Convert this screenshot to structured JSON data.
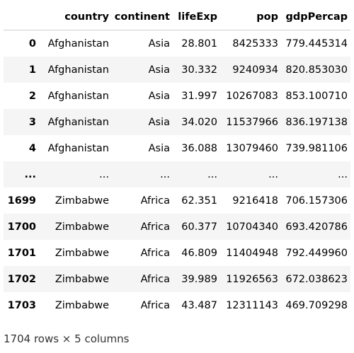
{
  "table": {
    "columns": [
      "",
      "country",
      "continent",
      "lifeExp",
      "pop",
      "gdpPercap"
    ],
    "rows": [
      {
        "index": "0",
        "country": "Afghanistan",
        "continent": "Asia",
        "lifeExp": "28.801",
        "pop": "8425333",
        "gdpPercap": "779.445314"
      },
      {
        "index": "1",
        "country": "Afghanistan",
        "continent": "Asia",
        "lifeExp": "30.332",
        "pop": "9240934",
        "gdpPercap": "820.853030"
      },
      {
        "index": "2",
        "country": "Afghanistan",
        "continent": "Asia",
        "lifeExp": "31.997",
        "pop": "10267083",
        "gdpPercap": "853.100710"
      },
      {
        "index": "3",
        "country": "Afghanistan",
        "continent": "Asia",
        "lifeExp": "34.020",
        "pop": "11537966",
        "gdpPercap": "836.197138"
      },
      {
        "index": "4",
        "country": "Afghanistan",
        "continent": "Asia",
        "lifeExp": "36.088",
        "pop": "13079460",
        "gdpPercap": "739.981106"
      },
      {
        "index": "...",
        "country": "...",
        "continent": "...",
        "lifeExp": "...",
        "pop": "...",
        "gdpPercap": "..."
      },
      {
        "index": "1699",
        "country": "Zimbabwe",
        "continent": "Africa",
        "lifeExp": "62.351",
        "pop": "9216418",
        "gdpPercap": "706.157306"
      },
      {
        "index": "1700",
        "country": "Zimbabwe",
        "continent": "Africa",
        "lifeExp": "60.377",
        "pop": "10704340",
        "gdpPercap": "693.420786"
      },
      {
        "index": "1701",
        "country": "Zimbabwe",
        "continent": "Africa",
        "lifeExp": "46.809",
        "pop": "11404948",
        "gdpPercap": "792.449960"
      },
      {
        "index": "1702",
        "country": "Zimbabwe",
        "continent": "Africa",
        "lifeExp": "39.989",
        "pop": "11926563",
        "gdpPercap": "672.038623"
      },
      {
        "index": "1703",
        "country": "Zimbabwe",
        "continent": "Africa",
        "lifeExp": "43.487",
        "pop": "12311143",
        "gdpPercap": "469.709298"
      }
    ]
  },
  "footer": {
    "summary": "1704 rows × 5 columns"
  }
}
